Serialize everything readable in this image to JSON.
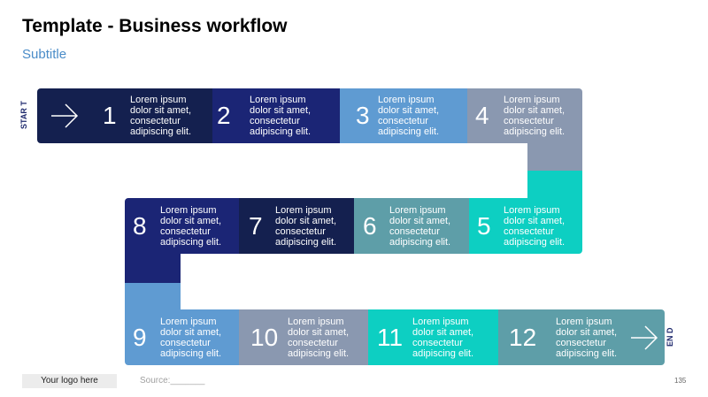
{
  "header": {
    "title": "Template - Business workflow",
    "subtitle": "Subtitle"
  },
  "flow": {
    "start_label": "STAR T",
    "end_label": "EN D",
    "steps": [
      {
        "number": "1",
        "text": "Lorem ipsum\ndolor sit amet,\nconsectetur\nadipiscing elit.",
        "color": "#14204f"
      },
      {
        "number": "2",
        "text": "Lorem ipsum\ndolor sit amet,\nconsectetur\nadipiscing elit.",
        "color": "#1b2575"
      },
      {
        "number": "3",
        "text": "Lorem ipsum\ndolor sit amet,\nconsectetur\nadipiscing elit.",
        "color": "#5f9bd2"
      },
      {
        "number": "4",
        "text": "Lorem ipsum\ndolor sit amet,\nconsectetur\nadipiscing elit.",
        "color": "#8a98b0"
      },
      {
        "number": "5",
        "text": "Lorem ipsum\ndolor sit amet,\nconsectetur\nadipiscing elit.",
        "color": "#0dcfc2"
      },
      {
        "number": "6",
        "text": "Lorem ipsum\ndolor sit amet,\nconsectetur\nadipiscing elit.",
        "color": "#5e9ea8"
      },
      {
        "number": "7",
        "text": "Lorem ipsum\ndolor sit amet,\nconsectetur\nadipiscing elit.",
        "color": "#14204f"
      },
      {
        "number": "8",
        "text": "Lorem ipsum\ndolor sit amet,\nconsectetur\nadipiscing elit.",
        "color": "#1b2575"
      },
      {
        "number": "9",
        "text": "Lorem ipsum\ndolor sit amet,\nconsectetur\nadipiscing elit.",
        "color": "#5f9bd2"
      },
      {
        "number": "10",
        "text": "Lorem ipsum\ndolor sit amet,\nconsectetur\nadipiscing elit.",
        "color": "#8a98b0"
      },
      {
        "number": "11",
        "text": "Lorem ipsum\ndolor sit amet,\nconsectetur\nadipiscing elit.",
        "color": "#0dcfc2"
      },
      {
        "number": "12",
        "text": "Lorem ipsum\ndolor sit amet,\nconsectetur\nadipiscing elit.",
        "color": "#5e9ea8"
      }
    ]
  },
  "footer": {
    "logo_text": "Your logo here",
    "source_text": "Source:_______",
    "page_number": "135"
  }
}
